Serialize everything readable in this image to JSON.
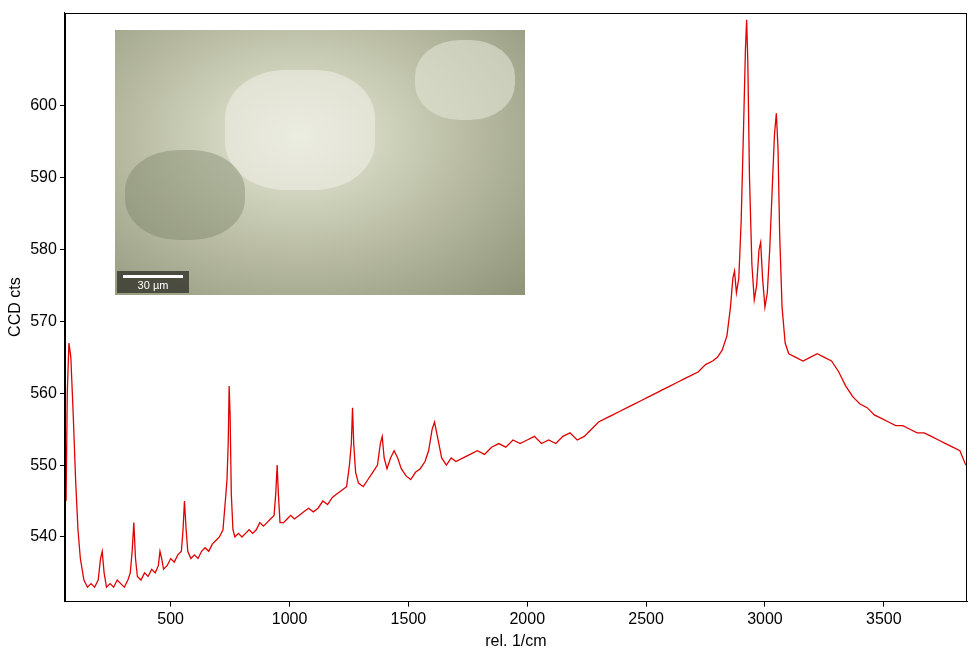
{
  "chart_data": {
    "type": "line",
    "x_label": "rel. 1/cm",
    "y_label": "CCD cts",
    "annotations": [
      "30 µm"
    ],
    "color": "#e00000",
    "grid": false,
    "xlim": [
      55,
      3850
    ],
    "xticks": [
      500,
      1000,
      1500,
      2000,
      2500,
      3000,
      3500
    ],
    "ylim": [
      531,
      613
    ],
    "yticks": [
      540,
      550,
      560,
      570,
      580,
      590,
      600
    ],
    "x": [
      60,
      65,
      72,
      80,
      90,
      100,
      110,
      120,
      135,
      150,
      165,
      180,
      195,
      205,
      212,
      220,
      230,
      245,
      260,
      275,
      290,
      305,
      320,
      330,
      338,
      345,
      352,
      360,
      375,
      390,
      405,
      420,
      435,
      448,
      455,
      462,
      470,
      485,
      500,
      515,
      530,
      545,
      552,
      558,
      565,
      572,
      585,
      600,
      615,
      630,
      645,
      660,
      675,
      690,
      705,
      720,
      730,
      737,
      742,
      746,
      750,
      755,
      762,
      770,
      785,
      800,
      815,
      830,
      845,
      860,
      875,
      890,
      905,
      920,
      935,
      942,
      948,
      953,
      960,
      975,
      990,
      1005,
      1020,
      1040,
      1060,
      1080,
      1100,
      1120,
      1140,
      1160,
      1180,
      1200,
      1220,
      1240,
      1252,
      1260,
      1265,
      1270,
      1278,
      1290,
      1310,
      1330,
      1350,
      1370,
      1382,
      1390,
      1398,
      1410,
      1425,
      1440,
      1455,
      1470,
      1490,
      1510,
      1530,
      1550,
      1570,
      1585,
      1600,
      1610,
      1622,
      1640,
      1660,
      1680,
      1700,
      1730,
      1760,
      1790,
      1820,
      1850,
      1880,
      1910,
      1940,
      1970,
      2000,
      2030,
      2060,
      2090,
      2120,
      2150,
      2180,
      2210,
      2240,
      2270,
      2300,
      2330,
      2360,
      2390,
      2420,
      2450,
      2480,
      2510,
      2540,
      2570,
      2600,
      2630,
      2660,
      2690,
      2720,
      2750,
      2780,
      2800,
      2820,
      2840,
      2855,
      2865,
      2872,
      2880,
      2890,
      2900,
      2910,
      2918,
      2923,
      2928,
      2935,
      2945,
      2955,
      2965,
      2975,
      2982,
      2990,
      3000,
      3010,
      3020,
      3030,
      3040,
      3048,
      3055,
      3062,
      3072,
      3085,
      3100,
      3130,
      3160,
      3190,
      3220,
      3250,
      3280,
      3310,
      3340,
      3370,
      3400,
      3430,
      3460,
      3490,
      3520,
      3550,
      3580,
      3610,
      3640,
      3670,
      3700,
      3730,
      3760,
      3790,
      3820,
      3845
    ],
    "values": [
      545,
      560,
      567,
      565,
      557,
      548,
      541,
      537,
      534,
      533,
      533.5,
      533,
      534,
      537,
      538,
      535,
      533,
      533.5,
      533,
      534,
      533.5,
      533,
      534,
      535,
      538,
      542,
      537,
      534.5,
      534,
      535,
      534.5,
      535.5,
      535,
      536,
      538,
      537,
      535.5,
      536,
      537,
      536.5,
      537.5,
      538,
      541,
      545,
      541,
      538,
      537,
      537.5,
      537,
      538,
      538.5,
      538,
      539,
      539.5,
      540,
      541,
      545,
      548,
      553,
      561,
      557,
      546,
      541,
      540,
      540.5,
      540,
      540.5,
      541,
      540.5,
      541,
      542,
      541.5,
      542,
      542.5,
      543,
      546,
      550,
      546,
      542,
      542,
      542.5,
      543,
      542.5,
      543,
      543.5,
      544,
      543.5,
      544,
      545,
      544.5,
      545.5,
      546,
      546.5,
      547,
      550,
      553,
      558,
      553,
      549,
      547.5,
      547,
      548,
      549,
      550,
      553,
      554,
      551,
      549.5,
      551,
      552,
      551,
      549.5,
      548.5,
      548,
      549,
      549.5,
      550.5,
      552,
      555,
      556,
      554,
      551,
      550,
      551,
      550.5,
      551,
      551.5,
      552,
      551.5,
      552.5,
      553,
      552.5,
      553.5,
      553,
      553.5,
      554,
      553,
      553.5,
      553,
      554,
      554.5,
      553.5,
      554,
      555,
      556,
      556.5,
      557,
      557.5,
      558,
      558.5,
      559,
      559.5,
      560,
      560.5,
      561,
      561.5,
      562,
      562.5,
      563,
      564,
      564.5,
      565,
      566,
      568,
      572,
      576,
      577,
      574,
      576,
      584,
      597,
      608,
      612,
      606,
      590,
      578,
      573,
      575,
      580,
      581,
      576,
      572,
      574,
      580,
      588,
      596,
      599,
      594,
      582,
      572,
      567,
      565.5,
      565,
      564.5,
      565,
      565.5,
      565,
      564.5,
      563,
      561,
      559.5,
      558.5,
      558,
      557,
      556.5,
      556,
      555.5,
      555.5,
      555,
      554.5,
      554.5,
      554,
      553.5,
      553,
      552.5,
      552,
      550
    ]
  }
}
